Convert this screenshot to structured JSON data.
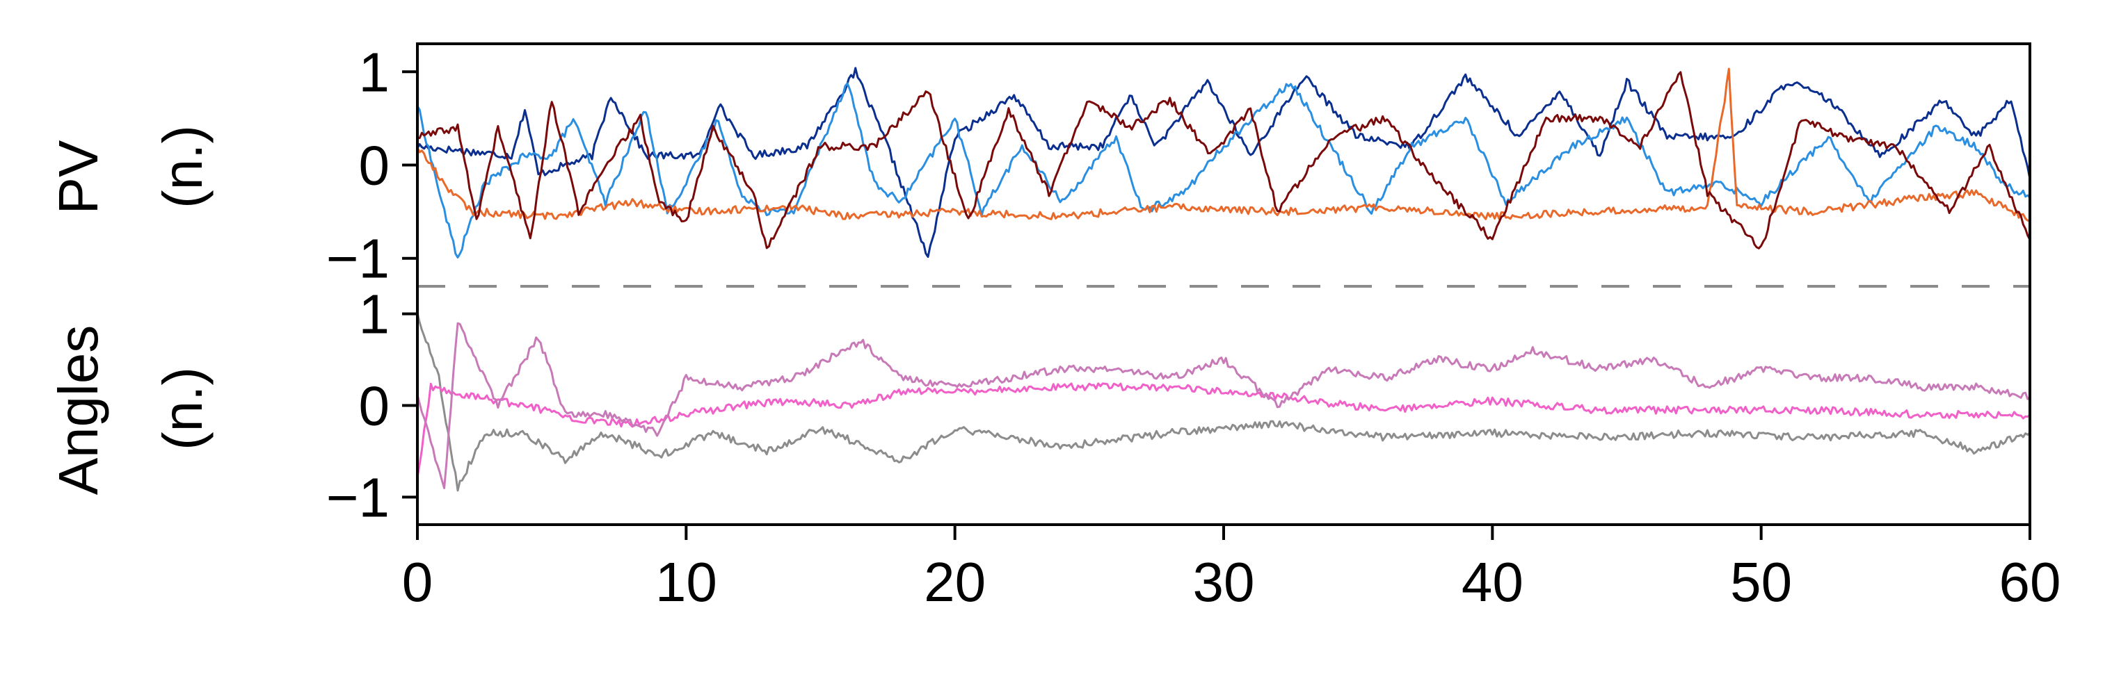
{
  "chart_data": [
    {
      "type": "line",
      "panel": "top",
      "ylabel_line1": "PV",
      "ylabel_line2": "(n.)",
      "xlim": [
        0,
        60
      ],
      "ylim": [
        -1.3,
        1.3
      ],
      "yticks": [
        1,
        0,
        -1
      ],
      "ytick_labels": [
        "1",
        "0",
        "−1"
      ],
      "grid": false,
      "series": [
        {
          "color": "#0a2f8f",
          "values_note_points": [
            [
              0,
              0.2
            ],
            [
              3.5,
              0.1
            ],
            [
              4,
              0.6
            ],
            [
              4.5,
              -0.1
            ],
            [
              6.5,
              0.1
            ],
            [
              7.2,
              0.75
            ],
            [
              8.5,
              0.1
            ],
            [
              10.5,
              0.1
            ],
            [
              11.2,
              0.65
            ],
            [
              12.5,
              0.1
            ],
            [
              14.5,
              0.2
            ],
            [
              16.3,
              1.0
            ],
            [
              17.5,
              0.2
            ],
            [
              19,
              -1.0
            ],
            [
              20,
              0.3
            ],
            [
              22.2,
              0.75
            ],
            [
              23.5,
              0.2
            ],
            [
              25.5,
              0.2
            ],
            [
              26.5,
              0.75
            ],
            [
              27.5,
              0.2
            ],
            [
              29.4,
              0.9
            ],
            [
              31,
              0.1
            ],
            [
              33,
              0.95
            ],
            [
              35,
              0.3
            ],
            [
              37,
              0.2
            ],
            [
              39,
              0.95
            ],
            [
              41,
              0.3
            ],
            [
              42.5,
              0.8
            ],
            [
              44,
              0.1
            ],
            [
              45,
              0.9
            ],
            [
              46.5,
              0.3
            ],
            [
              49,
              0.3
            ],
            [
              51,
              0.9
            ],
            [
              52.5,
              0.7
            ],
            [
              54.5,
              0.1
            ],
            [
              56.8,
              0.7
            ],
            [
              58,
              0.3
            ],
            [
              59.3,
              0.7
            ],
            [
              60,
              -0.15
            ]
          ]
        },
        {
          "color": "#2a8fe0",
          "values_note_points": [
            [
              0,
              0.65
            ],
            [
              1,
              -0.5
            ],
            [
              1.5,
              -1.0
            ],
            [
              2.5,
              -0.2
            ],
            [
              4,
              0.1
            ],
            [
              5,
              0.1
            ],
            [
              5.8,
              0.5
            ],
            [
              7,
              -0.4
            ],
            [
              8.5,
              0.6
            ],
            [
              9.3,
              -0.5
            ],
            [
              10,
              -0.2
            ],
            [
              11.2,
              0.5
            ],
            [
              12,
              -0.3
            ],
            [
              13,
              -0.5
            ],
            [
              14,
              -0.5
            ],
            [
              16,
              0.9
            ],
            [
              17,
              -0.2
            ],
            [
              18,
              -0.4
            ],
            [
              20,
              0.5
            ],
            [
              21,
              -0.5
            ],
            [
              22.5,
              0.2
            ],
            [
              24,
              -0.4
            ],
            [
              26,
              0.3
            ],
            [
              27,
              -0.5
            ],
            [
              28.5,
              -0.3
            ],
            [
              30,
              0.2
            ],
            [
              32.5,
              0.9
            ],
            [
              34,
              0.2
            ],
            [
              35.5,
              -0.5
            ],
            [
              37,
              0.2
            ],
            [
              39,
              0.5
            ],
            [
              40.5,
              -0.4
            ],
            [
              43,
              0.2
            ],
            [
              45,
              0.5
            ],
            [
              46.5,
              -0.3
            ],
            [
              48.5,
              -0.2
            ],
            [
              50,
              -0.4
            ],
            [
              52.5,
              0.3
            ],
            [
              54,
              -0.4
            ],
            [
              56.5,
              0.4
            ],
            [
              58,
              0.2
            ],
            [
              59,
              -0.2
            ],
            [
              60,
              -0.35
            ]
          ]
        },
        {
          "color": "#e8692a",
          "values_note_points": [
            [
              0,
              0.2
            ],
            [
              1,
              -0.2
            ],
            [
              2,
              -0.5
            ],
            [
              5,
              -0.55
            ],
            [
              8,
              -0.4
            ],
            [
              10,
              -0.5
            ],
            [
              14,
              -0.45
            ],
            [
              16,
              -0.55
            ],
            [
              20,
              -0.5
            ],
            [
              24,
              -0.55
            ],
            [
              28,
              -0.45
            ],
            [
              32,
              -0.5
            ],
            [
              36,
              -0.45
            ],
            [
              40,
              -0.55
            ],
            [
              44,
              -0.5
            ],
            [
              48,
              -0.45
            ],
            [
              48.8,
              1.0
            ],
            [
              49.1,
              -0.45
            ],
            [
              52,
              -0.5
            ],
            [
              56,
              -0.35
            ],
            [
              58,
              -0.3
            ],
            [
              60,
              -0.6
            ]
          ]
        },
        {
          "color": "#7a0a0a",
          "values_note_points": [
            [
              0,
              0.3
            ],
            [
              1.5,
              0.4
            ],
            [
              2.2,
              -0.6
            ],
            [
              3,
              0.4
            ],
            [
              4.2,
              -0.8
            ],
            [
              5,
              0.7
            ],
            [
              6,
              -0.5
            ],
            [
              7.5,
              0.2
            ],
            [
              8.3,
              0.5
            ],
            [
              9,
              -0.4
            ],
            [
              10,
              -0.6
            ],
            [
              11,
              0.4
            ],
            [
              12.5,
              -0.3
            ],
            [
              13,
              -0.9
            ],
            [
              15,
              0.2
            ],
            [
              17,
              0.2
            ],
            [
              19,
              0.8
            ],
            [
              20.5,
              -0.6
            ],
            [
              22,
              0.6
            ],
            [
              23.5,
              -0.3
            ],
            [
              25,
              0.7
            ],
            [
              26.5,
              0.4
            ],
            [
              28,
              0.7
            ],
            [
              29.5,
              0.1
            ],
            [
              31,
              0.6
            ],
            [
              32,
              -0.5
            ],
            [
              34,
              0.3
            ],
            [
              36,
              0.5
            ],
            [
              38,
              -0.2
            ],
            [
              40,
              -0.8
            ],
            [
              42,
              0.5
            ],
            [
              44,
              0.5
            ],
            [
              45.5,
              0.2
            ],
            [
              47,
              1.0
            ],
            [
              48,
              -0.3
            ],
            [
              50,
              -0.9
            ],
            [
              51.5,
              0.5
            ],
            [
              53,
              0.3
            ],
            [
              55,
              0.2
            ],
            [
              57,
              -0.5
            ],
            [
              58.5,
              0.2
            ],
            [
              60,
              -0.8
            ]
          ]
        }
      ]
    },
    {
      "type": "line",
      "panel": "bottom",
      "ylabel_line1": "Angles",
      "ylabel_line2": "(n.)",
      "xlim": [
        0,
        60
      ],
      "ylim": [
        -1.3,
        1.3
      ],
      "yticks": [
        1,
        0,
        -1
      ],
      "ytick_labels": [
        "1",
        "0",
        "−1"
      ],
      "xticks": [
        0,
        10,
        20,
        30,
        40,
        50,
        60
      ],
      "xtick_labels": [
        "0",
        "10",
        "20",
        "30",
        "40",
        "50",
        "60"
      ],
      "grid": false,
      "series": [
        {
          "color": "#8c8c8c",
          "values_note_points": [
            [
              0,
              1.0
            ],
            [
              0.8,
              0.3
            ],
            [
              1.5,
              -0.9
            ],
            [
              2.5,
              -0.3
            ],
            [
              4,
              -0.3
            ],
            [
              5.5,
              -0.6
            ],
            [
              7,
              -0.3
            ],
            [
              9,
              -0.55
            ],
            [
              11,
              -0.3
            ],
            [
              13,
              -0.5
            ],
            [
              15,
              -0.25
            ],
            [
              18,
              -0.6
            ],
            [
              20,
              -0.25
            ],
            [
              24,
              -0.45
            ],
            [
              28,
              -0.3
            ],
            [
              32,
              -0.2
            ],
            [
              36,
              -0.35
            ],
            [
              40,
              -0.3
            ],
            [
              44,
              -0.35
            ],
            [
              48,
              -0.3
            ],
            [
              52,
              -0.35
            ],
            [
              56,
              -0.3
            ],
            [
              58,
              -0.5
            ],
            [
              60,
              -0.3
            ]
          ]
        },
        {
          "color": "#f060c8",
          "values_note_points": [
            [
              0,
              -0.8
            ],
            [
              0.5,
              0.2
            ],
            [
              2,
              0.1
            ],
            [
              4,
              0.0
            ],
            [
              6,
              -0.15
            ],
            [
              8,
              -0.2
            ],
            [
              10,
              -0.1
            ],
            [
              12,
              0.0
            ],
            [
              14,
              0.05
            ],
            [
              16,
              0.0
            ],
            [
              18,
              0.15
            ],
            [
              20,
              0.15
            ],
            [
              24,
              0.2
            ],
            [
              28,
              0.2
            ],
            [
              30,
              0.15
            ],
            [
              32,
              0.1
            ],
            [
              36,
              -0.05
            ],
            [
              40,
              0.05
            ],
            [
              44,
              -0.05
            ],
            [
              48,
              -0.05
            ],
            [
              52,
              -0.05
            ],
            [
              56,
              -0.1
            ],
            [
              60,
              -0.1
            ]
          ]
        },
        {
          "color": "#c87ab8",
          "values_note_points": [
            [
              0,
              0.1
            ],
            [
              1,
              -0.9
            ],
            [
              1.5,
              0.9
            ],
            [
              2.5,
              0.3
            ],
            [
              3,
              0.0
            ],
            [
              4.5,
              0.75
            ],
            [
              5.5,
              -0.1
            ],
            [
              7,
              -0.1
            ],
            [
              9,
              -0.3
            ],
            [
              10,
              0.3
            ],
            [
              12,
              0.2
            ],
            [
              14,
              0.3
            ],
            [
              16.5,
              0.7
            ],
            [
              18,
              0.3
            ],
            [
              20,
              0.2
            ],
            [
              24,
              0.4
            ],
            [
              26,
              0.4
            ],
            [
              28,
              0.3
            ],
            [
              30,
              0.5
            ],
            [
              32,
              0.0
            ],
            [
              34,
              0.4
            ],
            [
              36,
              0.3
            ],
            [
              38,
              0.5
            ],
            [
              40,
              0.4
            ],
            [
              41.5,
              0.6
            ],
            [
              44,
              0.4
            ],
            [
              46,
              0.5
            ],
            [
              48,
              0.2
            ],
            [
              50,
              0.4
            ],
            [
              52,
              0.3
            ],
            [
              54,
              0.3
            ],
            [
              56,
              0.2
            ],
            [
              58,
              0.2
            ],
            [
              60,
              0.1
            ]
          ]
        }
      ]
    }
  ]
}
